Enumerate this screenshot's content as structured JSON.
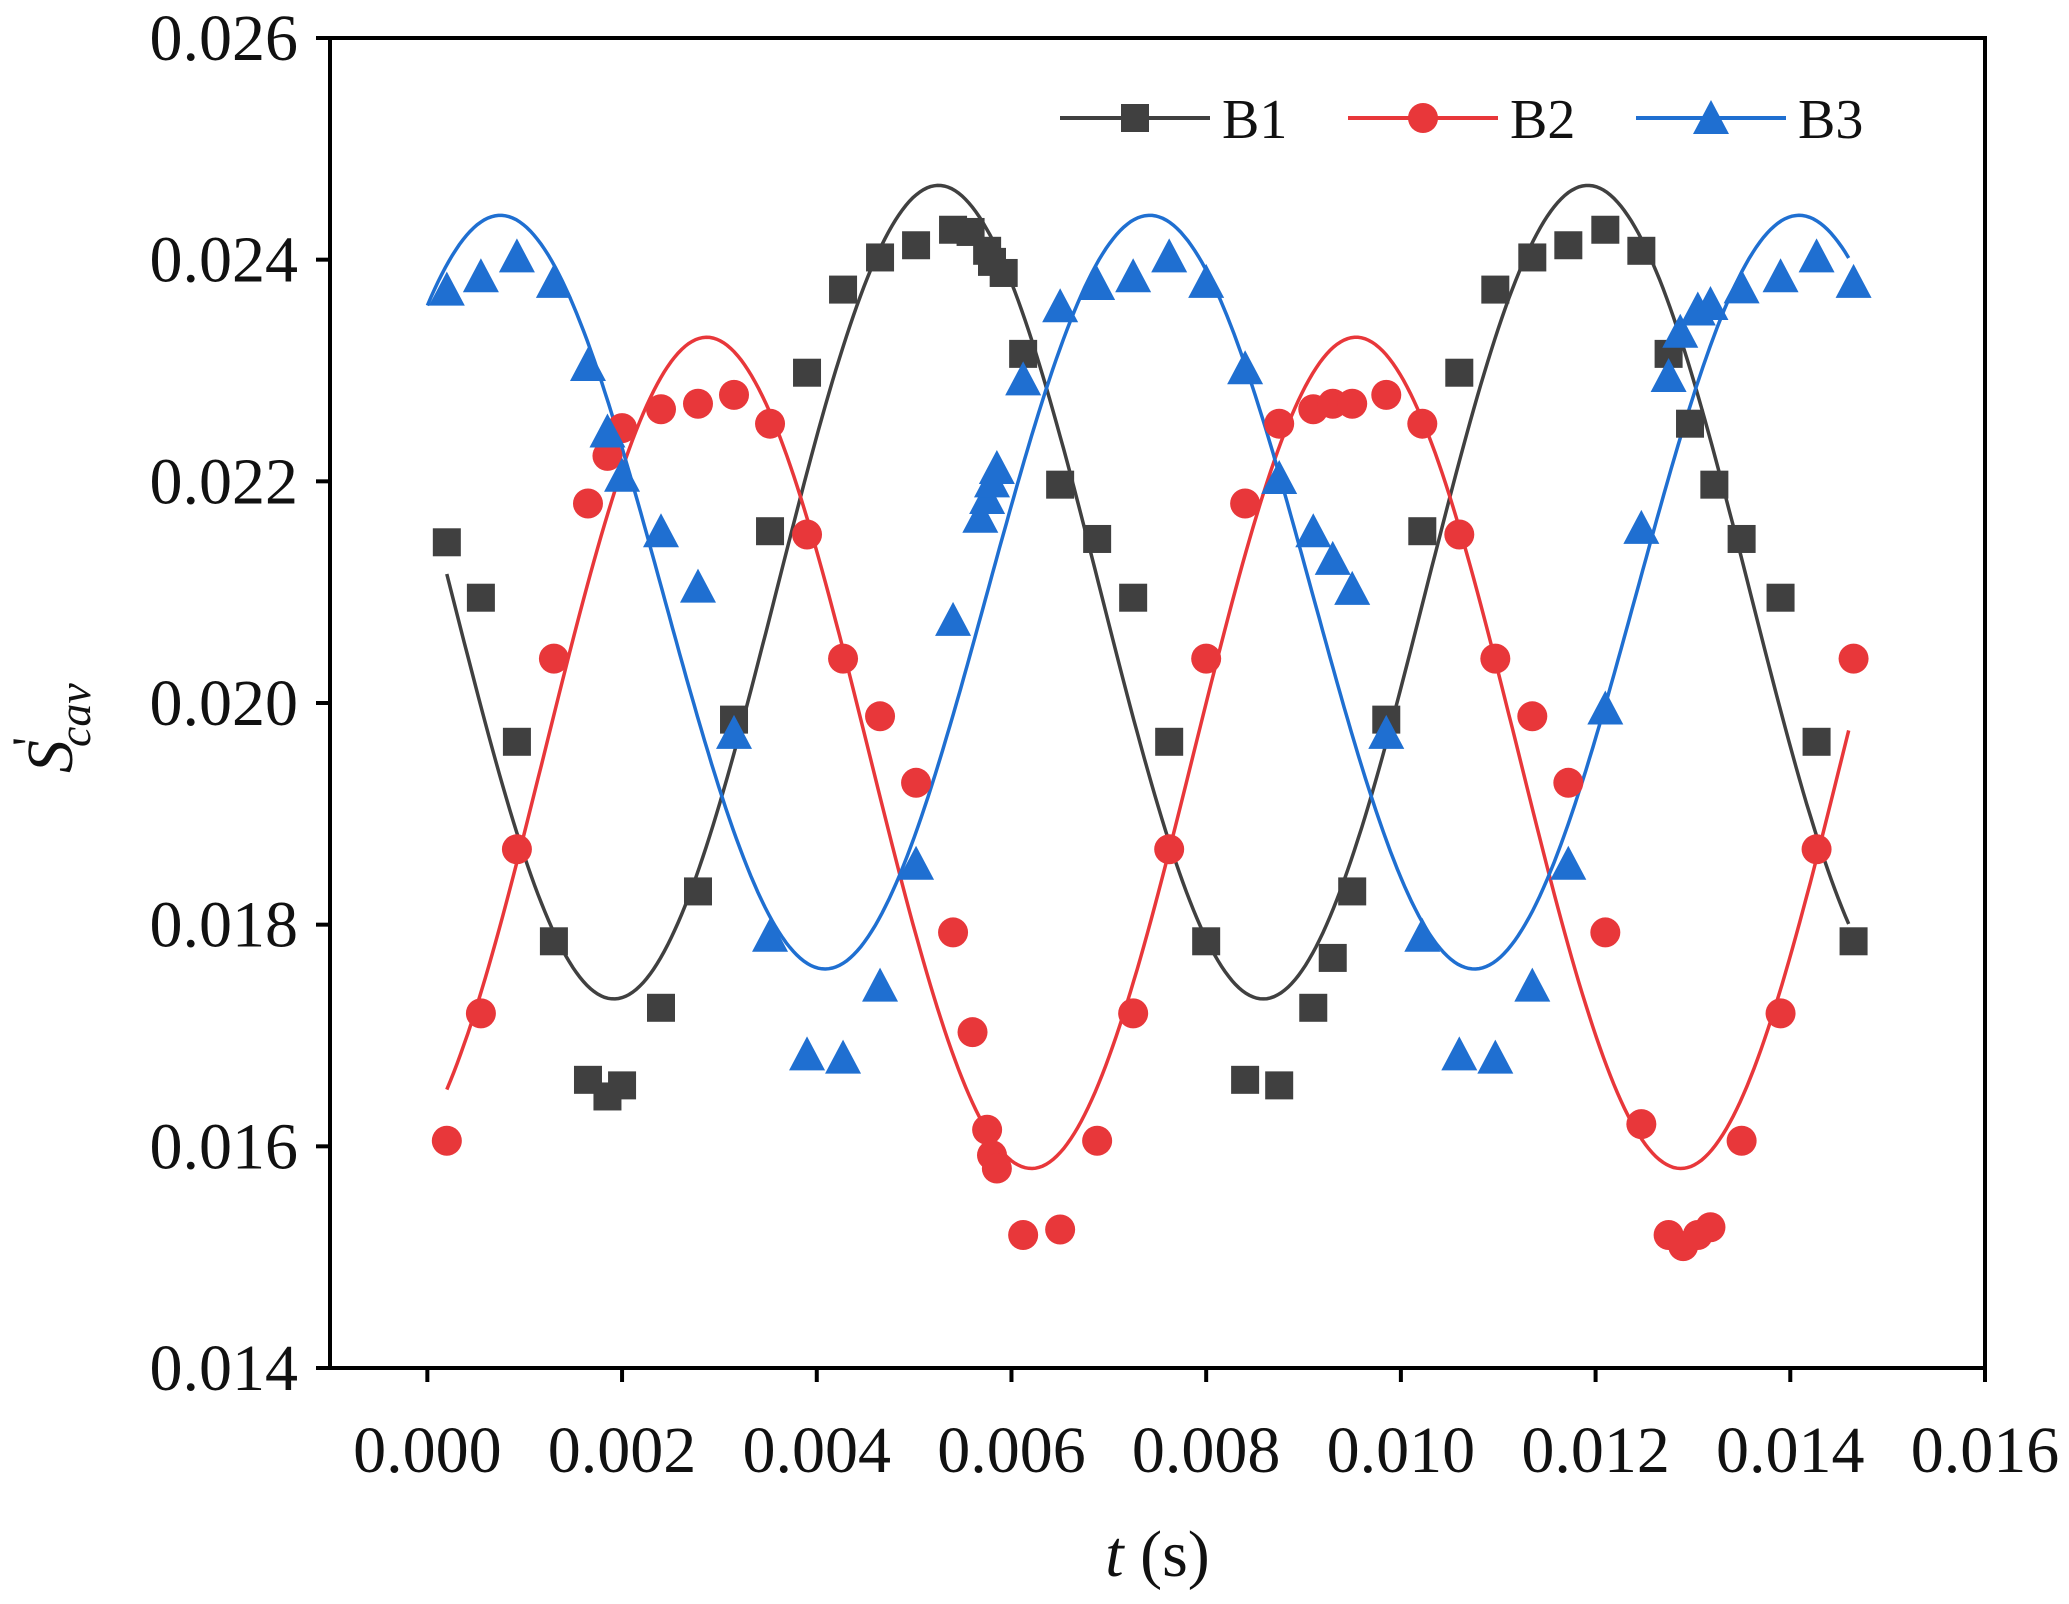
{
  "chart_data": {
    "type": "scatter",
    "xlabel": "t (s)",
    "xlabel_parts": {
      "var": "t",
      "unit": " (s)"
    },
    "ylabel": "S'cav",
    "ylabel_parts": {
      "base": "S",
      "prime": "'",
      "sub": "cav"
    },
    "xlim": [
      -0.001,
      0.016
    ],
    "ylim": [
      0.014,
      0.026
    ],
    "xticks": [
      0.0,
      0.002,
      0.004,
      0.006,
      0.008,
      0.01,
      0.012,
      0.014,
      0.016
    ],
    "xtick_labels": [
      "0.000",
      "0.002",
      "0.004",
      "0.006",
      "0.008",
      "0.010",
      "0.012",
      "0.014",
      "0.016"
    ],
    "yticks": [
      0.014,
      0.016,
      0.018,
      0.02,
      0.022,
      0.024,
      0.026
    ],
    "ytick_labels": [
      "0.014",
      "0.016",
      "0.018",
      "0.020",
      "0.022",
      "0.024",
      "0.026"
    ],
    "grid": false,
    "legend_position": "top-right",
    "series": [
      {
        "name": "B1",
        "color": "#404040",
        "marker": "square",
        "fit": {
          "mean": 0.021,
          "amplitude": 0.00367,
          "period": 0.00667,
          "peak_t": 0.00525,
          "t_range": [
            0.0002,
            0.0146
          ]
        },
        "x": [
          0.0002,
          0.00055,
          0.00092,
          0.0013,
          0.00165,
          0.00185,
          0.002,
          0.0024,
          0.00278,
          0.00315,
          0.00352,
          0.0039,
          0.00427,
          0.00465,
          0.00502,
          0.0054,
          0.00558,
          0.00575,
          0.0058,
          0.00592,
          0.00612,
          0.0065,
          0.00688,
          0.00725,
          0.00762,
          0.008,
          0.0084,
          0.00875,
          0.0091,
          0.0093,
          0.0095,
          0.00985,
          0.01022,
          0.0106,
          0.01097,
          0.01135,
          0.01172,
          0.0121,
          0.01247,
          0.01275,
          0.01297,
          0.01322,
          0.0135,
          0.0139,
          0.01427,
          0.01465
        ],
        "y": [
          0.02145,
          0.02095,
          0.01965,
          0.01785,
          0.0166,
          0.01645,
          0.01655,
          0.01725,
          0.0183,
          0.01985,
          0.02155,
          0.02298,
          0.02373,
          0.02402,
          0.02413,
          0.02427,
          0.02425,
          0.02408,
          0.02398,
          0.02388,
          0.02315,
          0.02197,
          0.02148,
          0.02095,
          0.01965,
          0.01785,
          0.0166,
          0.01655,
          0.01725,
          0.0177,
          0.0183,
          0.01985,
          0.02155,
          0.02298,
          0.02373,
          0.02402,
          0.02413,
          0.02427,
          0.02408,
          0.02315,
          0.02252,
          0.02197,
          0.02148,
          0.02095,
          0.01965,
          0.01785
        ]
      },
      {
        "name": "B2",
        "color": "#e8373a",
        "marker": "circle",
        "fit": {
          "mean": 0.01955,
          "amplitude": 0.00375,
          "period": 0.00667,
          "peak_t": 0.00287,
          "t_range": [
            0.0002,
            0.0146
          ]
        },
        "x": [
          0.0002,
          0.00055,
          0.00092,
          0.0013,
          0.00165,
          0.00185,
          0.002,
          0.0024,
          0.00278,
          0.00315,
          0.00352,
          0.0039,
          0.00427,
          0.00465,
          0.00502,
          0.0054,
          0.0056,
          0.00575,
          0.0058,
          0.00585,
          0.00612,
          0.0065,
          0.00688,
          0.00725,
          0.00762,
          0.008,
          0.0084,
          0.00875,
          0.0091,
          0.0093,
          0.0095,
          0.00985,
          0.01022,
          0.0106,
          0.01097,
          0.01135,
          0.01172,
          0.0121,
          0.01247,
          0.01275,
          0.0129,
          0.01305,
          0.01318,
          0.0135,
          0.0139,
          0.01427,
          0.01465
        ],
        "y": [
          0.01605,
          0.0172,
          0.01868,
          0.0204,
          0.0218,
          0.02223,
          0.02248,
          0.02265,
          0.0227,
          0.02278,
          0.02252,
          0.02152,
          0.0204,
          0.01988,
          0.01928,
          0.01793,
          0.01703,
          0.01615,
          0.01592,
          0.0158,
          0.0152,
          0.01525,
          0.01605,
          0.0172,
          0.01868,
          0.0204,
          0.0218,
          0.02252,
          0.02265,
          0.0227,
          0.0227,
          0.02278,
          0.02252,
          0.02152,
          0.0204,
          0.01988,
          0.01928,
          0.01793,
          0.0162,
          0.0152,
          0.0151,
          0.0152,
          0.01527,
          0.01605,
          0.0172,
          0.01868,
          0.0204
        ]
      },
      {
        "name": "B3",
        "color": "#1f6fd1",
        "marker": "triangle",
        "fit": {
          "mean": 0.021,
          "amplitude": 0.0034,
          "period": 0.00667,
          "peak_t": 0.00075,
          "t_range": [
            0.0,
            0.0146
          ]
        },
        "x": [
          0.0002,
          0.00055,
          0.00092,
          0.0013,
          0.00165,
          0.00185,
          0.002,
          0.0024,
          0.00278,
          0.00315,
          0.00352,
          0.0039,
          0.00427,
          0.00465,
          0.00502,
          0.0054,
          0.00568,
          0.00575,
          0.0058,
          0.00585,
          0.00612,
          0.0065,
          0.00688,
          0.00725,
          0.00762,
          0.008,
          0.0084,
          0.00875,
          0.0091,
          0.0093,
          0.0095,
          0.00985,
          0.01022,
          0.0106,
          0.01097,
          0.01135,
          0.01172,
          0.0121,
          0.01247,
          0.01275,
          0.01287,
          0.01305,
          0.01318,
          0.0135,
          0.0139,
          0.01427,
          0.01465
        ],
        "y": [
          0.02373,
          0.02385,
          0.02403,
          0.0238,
          0.02305,
          0.02245,
          0.02205,
          0.02155,
          0.02105,
          0.01973,
          0.0179,
          0.01683,
          0.0168,
          0.01745,
          0.01855,
          0.02075,
          0.02168,
          0.02185,
          0.022,
          0.02212,
          0.02292,
          0.02358,
          0.02378,
          0.02385,
          0.02403,
          0.0238,
          0.02302,
          0.02203,
          0.02155,
          0.0213,
          0.02103,
          0.01973,
          0.0179,
          0.01683,
          0.0168,
          0.01745,
          0.01855,
          0.01995,
          0.02158,
          0.02295,
          0.02335,
          0.02355,
          0.0236,
          0.02375,
          0.02385,
          0.02403,
          0.0238
        ]
      }
    ]
  }
}
